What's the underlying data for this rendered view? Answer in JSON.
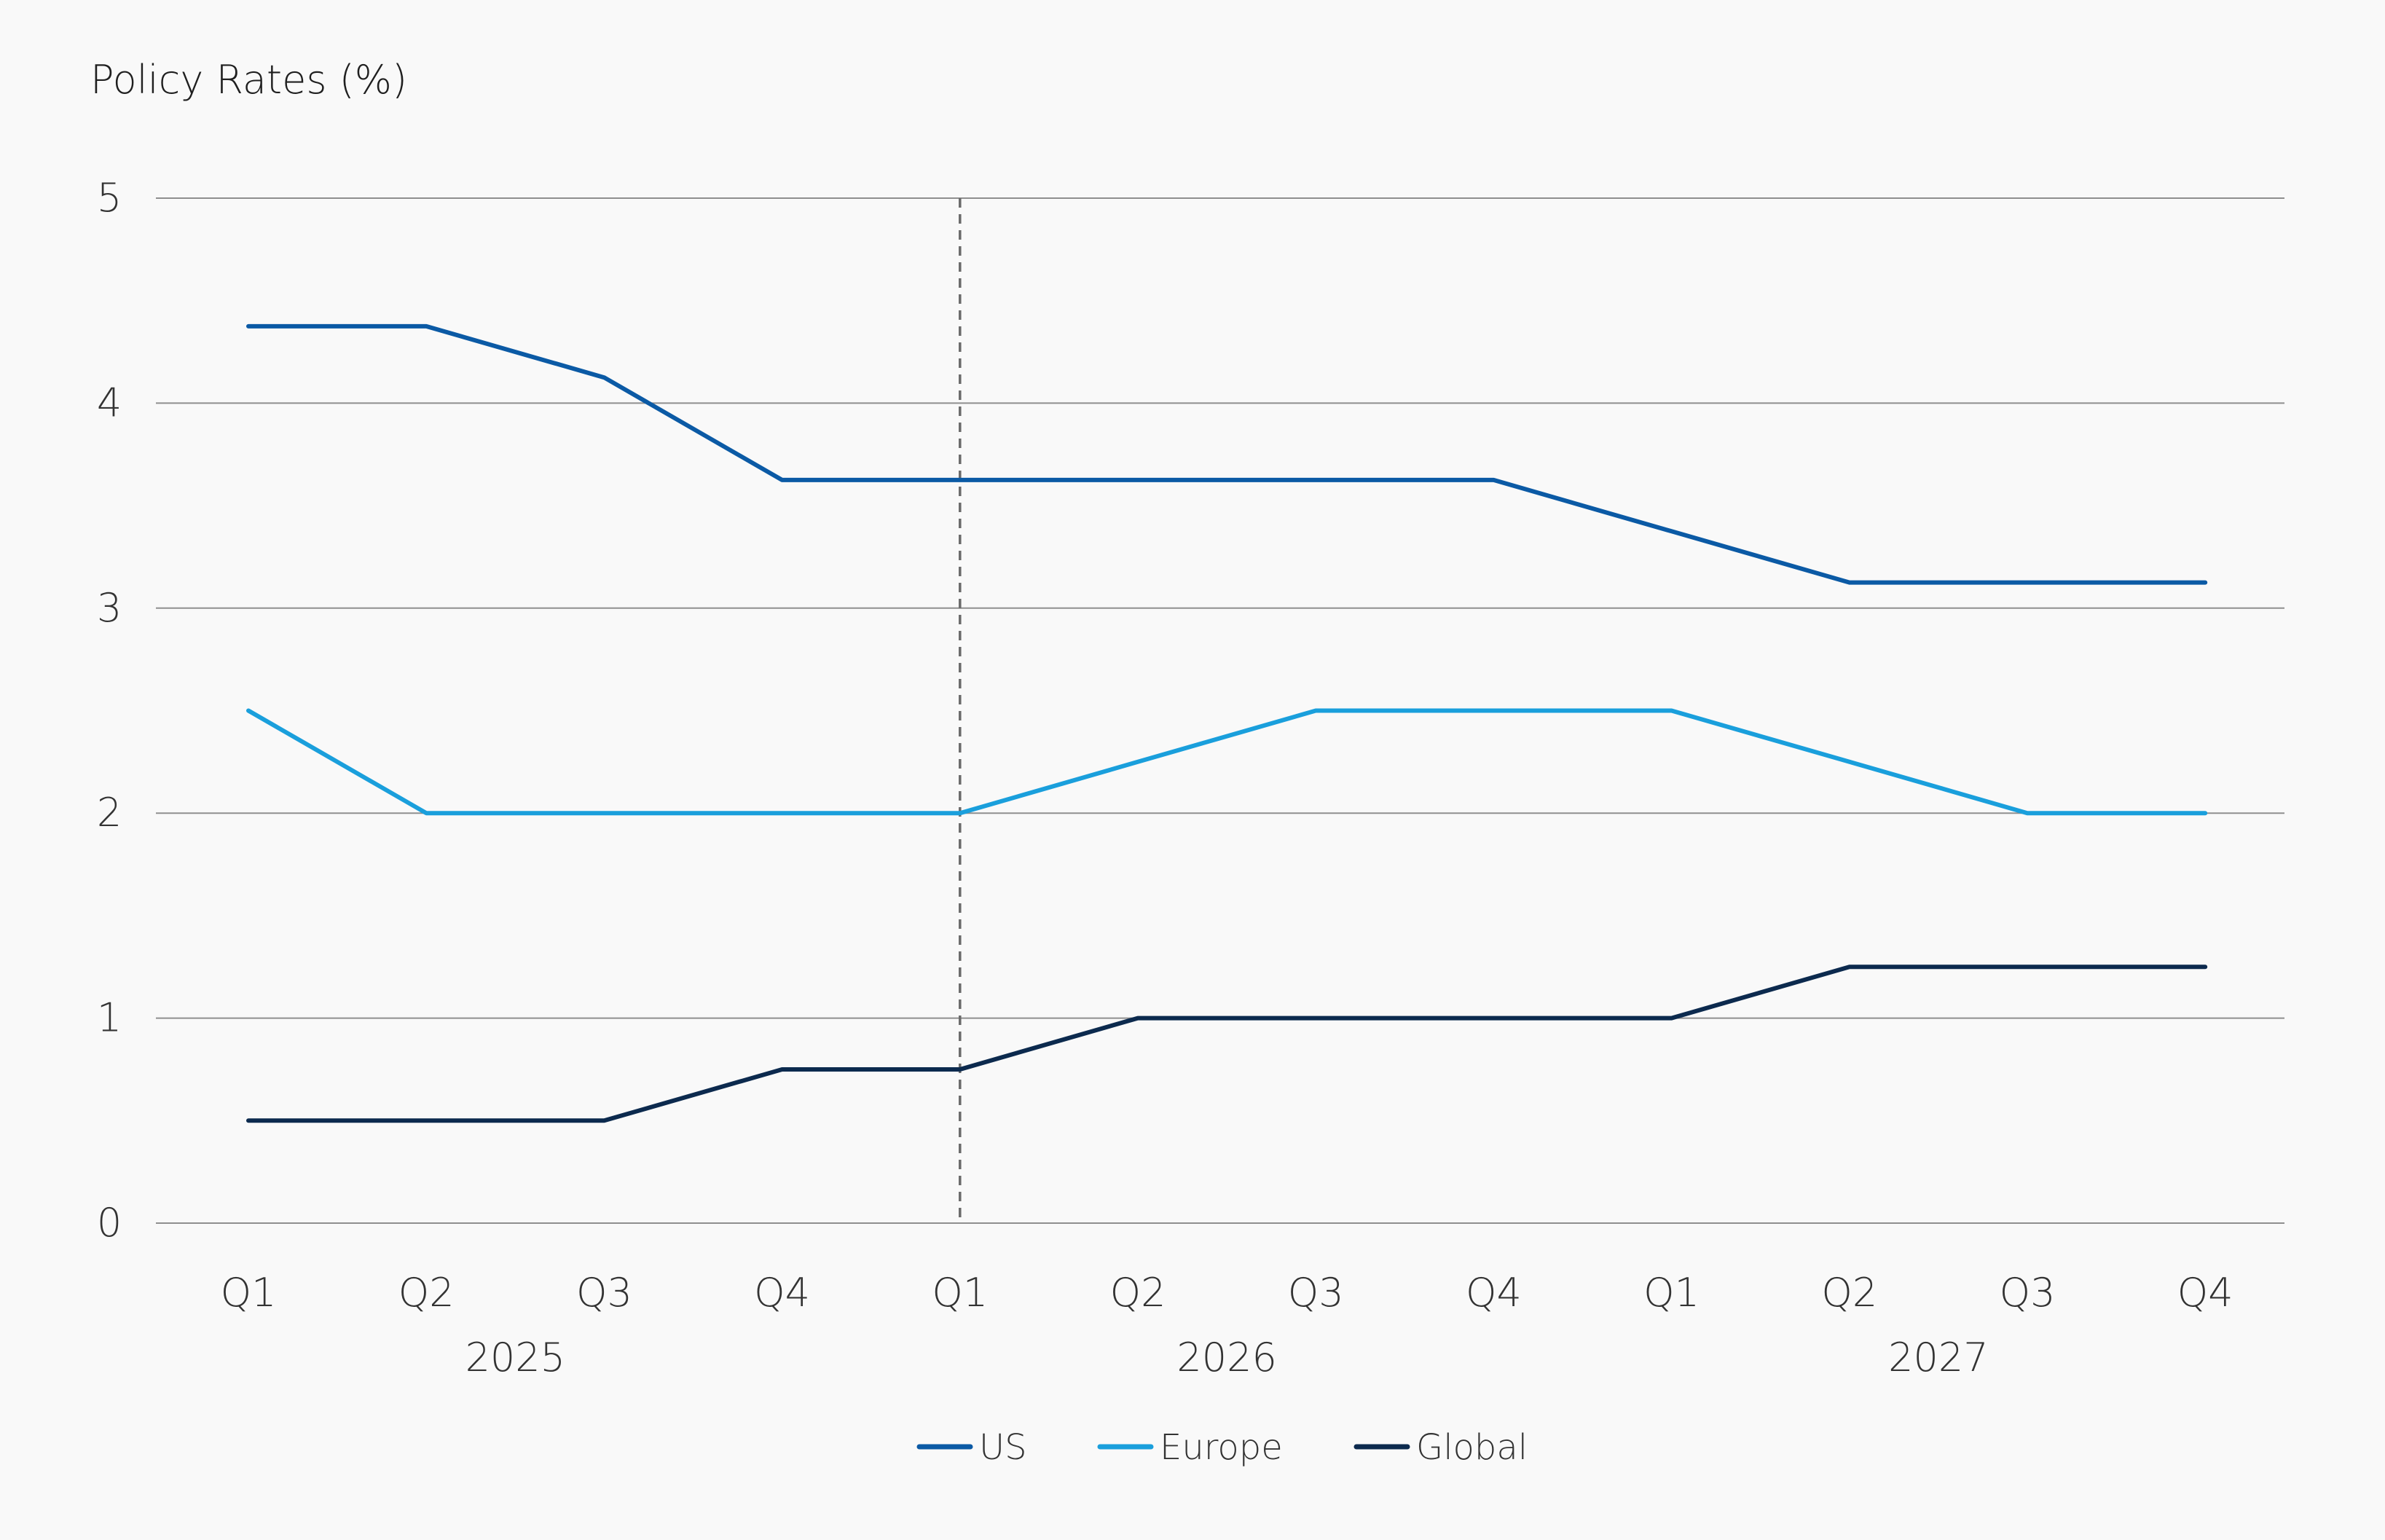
{
  "chart_data": {
    "type": "line",
    "title": "Policy Rates (%)",
    "xlabel": "",
    "ylabel": "",
    "ylim": [
      0,
      5
    ],
    "yticks": [
      0,
      1,
      2,
      3,
      4,
      5
    ],
    "grid": true,
    "legend_position": "bottom-center",
    "categories": [
      "Q1",
      "Q2",
      "Q3",
      "Q4",
      "Q1",
      "Q2",
      "Q3",
      "Q4",
      "Q1",
      "Q2",
      "Q3",
      "Q4"
    ],
    "years": [
      {
        "label": "2025",
        "start_index": 0,
        "end_index": 3
      },
      {
        "label": "2026",
        "start_index": 4,
        "end_index": 7
      },
      {
        "label": "2027",
        "start_index": 8,
        "end_index": 11
      }
    ],
    "forecast_divider_index": 4,
    "series": [
      {
        "name": "US",
        "color": "#0b5aa5",
        "values": [
          4.375,
          4.375,
          4.125,
          3.625,
          3.625,
          3.625,
          3.625,
          3.625,
          3.375,
          3.125,
          3.125,
          3.125
        ]
      },
      {
        "name": "Europe",
        "color": "#1a9fdc",
        "values": [
          2.5,
          2.0,
          2.0,
          2.0,
          2.0,
          2.25,
          2.5,
          2.5,
          2.5,
          2.25,
          2.0,
          2.0
        ]
      },
      {
        "name": "Global",
        "color": "#0c2a4e",
        "values": [
          0.5,
          0.5,
          0.5,
          0.75,
          0.75,
          1.0,
          1.0,
          1.0,
          1.0,
          1.25,
          1.25,
          1.25
        ]
      }
    ]
  }
}
